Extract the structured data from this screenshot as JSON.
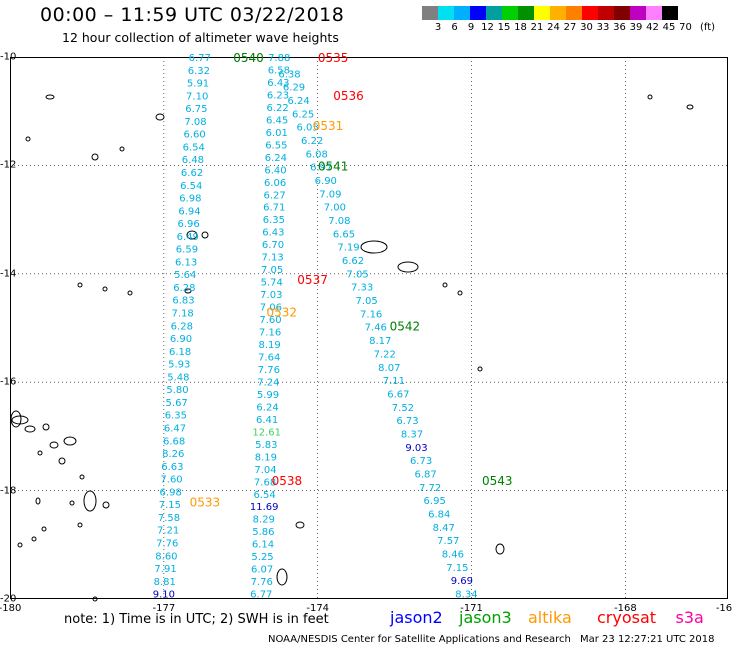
{
  "header": {
    "title": "00:00 – 11:59 UTC 03/22/2018",
    "subtitle": "12 hour collection of altimeter wave heights"
  },
  "colorbar": {
    "colors": [
      "#808080",
      "#00e0f0",
      "#00b0ff",
      "#0000ff",
      "#00a0a0",
      "#00d000",
      "#009000",
      "#ffff00",
      "#ffb000",
      "#ff8000",
      "#ff0000",
      "#c00000",
      "#800000",
      "#c000c0",
      "#ff80ff",
      "#000000"
    ],
    "ticks": [
      "3",
      "6",
      "9",
      "12",
      "15",
      "18",
      "21",
      "24",
      "27",
      "30",
      "33",
      "36",
      "39",
      "42",
      "45",
      "70",
      "(ft)"
    ]
  },
  "axes": {
    "y_labels": [
      "-10",
      "-12",
      "-14",
      "-16",
      "-18",
      "-20"
    ],
    "x_labels": [
      "-180",
      "-177",
      "-174",
      "-171",
      "-168",
      "-16"
    ],
    "lat_range": [
      -20,
      -10
    ],
    "lon_range": [
      -180,
      -166
    ]
  },
  "passes": [
    {
      "label": "0540",
      "color": "#008000",
      "lat": -10.0,
      "lon": -175.35
    },
    {
      "label": "0535",
      "color": "#ff0000",
      "lat": -10.0,
      "lon": -173.7
    },
    {
      "label": "0536",
      "color": "#ff0000",
      "lat": -10.7,
      "lon": -173.4
    },
    {
      "label": "0531",
      "color": "#ff9900",
      "lat": -11.25,
      "lon": -173.8
    },
    {
      "label": "0541",
      "color": "#008000",
      "lat": -12.0,
      "lon": -173.7
    },
    {
      "label": "0537",
      "color": "#ff0000",
      "lat": -14.1,
      "lon": -174.1
    },
    {
      "label": "0532",
      "color": "#ff9900",
      "lat": -14.7,
      "lon": -174.7
    },
    {
      "label": "0542",
      "color": "#008000",
      "lat": -14.95,
      "lon": -172.3
    },
    {
      "label": "0538",
      "color": "#ff0000",
      "lat": -17.8,
      "lon": -174.6
    },
    {
      "label": "0543",
      "color": "#008000",
      "lat": -17.8,
      "lon": -170.5
    },
    {
      "label": "0533",
      "color": "#ff9900",
      "lat": -18.2,
      "lon": -176.2
    }
  ],
  "tracks": [
    {
      "color": "#00b0e0",
      "lat0": -10.0,
      "lon0": -176.3,
      "lat1": -19.9,
      "lon1": -177.0,
      "values": [
        "6.77",
        "6.32",
        "5.91",
        "7.10",
        "6.75",
        "7.08",
        "6.60",
        "6.54",
        "6.48",
        "6.62",
        "6.54",
        "6.98",
        "6.94",
        "6.96",
        "6.49",
        "6.59",
        "6.13",
        "5.64",
        "6.28",
        "6.83",
        "7.18",
        "6.28",
        "6.90",
        "6.18",
        "5.93",
        "5.48",
        "5.80",
        "5.67",
        "6.35",
        "6.47",
        "6.68",
        "8.26",
        "6.63",
        "7.60",
        "6.98",
        "7.15",
        "7.58",
        "7.21",
        "7.76",
        "8.60",
        "7.91",
        "8.81",
        "9.10"
      ],
      "value_colors": {
        "42": "#0000c0"
      }
    },
    {
      "color": "#00b0e0",
      "lat0": -10.0,
      "lon0": -174.75,
      "lat1": -19.9,
      "lon1": -175.1,
      "values": [
        "7.88",
        "6.58",
        "6.43",
        "6.23",
        "6.22",
        "6.45",
        "6.01",
        "6.55",
        "6.24",
        "6.40",
        "6.06",
        "6.27",
        "6.71",
        "6.35",
        "6.43",
        "6.70",
        "7.13",
        "7.05",
        "5.74",
        "7.03",
        "7.06",
        "7.60",
        "7.16",
        "8.19",
        "7.64",
        "7.76",
        "7.24",
        "5.99",
        "6.24",
        "6.41",
        "12.61",
        "5.83",
        "8.19",
        "7.04",
        "7.68",
        "6.54",
        "11.69",
        "8.29",
        "5.86",
        "6.14",
        "5.25",
        "6.07",
        "7.76",
        "6.77"
      ],
      "value_colors": {
        "30": "#40d060",
        "36": "#0000c0"
      }
    },
    {
      "color": "#00b0e0",
      "lat0": -10.3,
      "lon0": -174.55,
      "lat1": -19.9,
      "lon1": -171.1,
      "values": [
        "6.38",
        "6.29",
        "6.24",
        "6.25",
        "6.05",
        "6.22",
        "6.08",
        "6.97",
        "6.90",
        "7.09",
        "7.00",
        "7.08",
        "6.65",
        "7.19",
        "6.62",
        "7.05",
        "7.33",
        "7.05",
        "7.16",
        "7.46",
        "8.17",
        "7.22",
        "8.07",
        "7.11",
        "6.67",
        "7.52",
        "6.73",
        "8.37",
        "9.03",
        "6.73",
        "6.87",
        "7.72",
        "6.95",
        "6.84",
        "8.47",
        "7.57",
        "8.46",
        "7.15",
        "9.69",
        "8.34"
      ],
      "value_colors": {
        "28": "#0000c0",
        "38": "#0000c0"
      }
    }
  ],
  "legend": [
    {
      "label": "jason2",
      "color": "#0000ff"
    },
    {
      "label": "jason3",
      "color": "#00a000"
    },
    {
      "label": "altika",
      "color": "#ff9900"
    },
    {
      "label": "cryosat",
      "color": "#ff0000"
    },
    {
      "label": "s3a",
      "color": "#ff00a0"
    }
  ],
  "note": "note: 1) Time is in UTC; 2) SWH is in feet",
  "footer": "NOAA/NESDIS Center for Satellite Applications and Research",
  "footer_time": "Mar 23 12:27:21 UTC 2018"
}
